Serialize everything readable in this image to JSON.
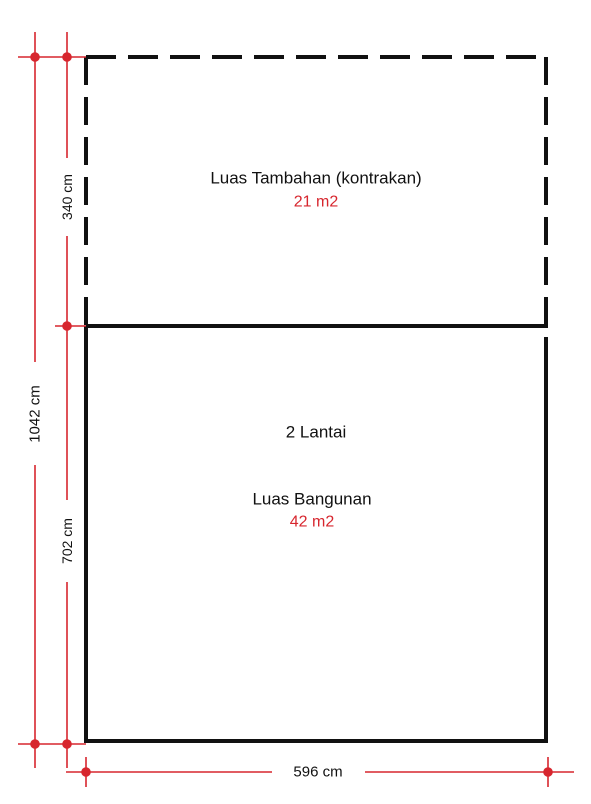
{
  "colors": {
    "outline": "#111111",
    "dimension": "#d7262e",
    "area_value": "#d7262e"
  },
  "top_room": {
    "title": "Luas Tambahan (kontrakan)",
    "area": "21 m2",
    "border_style": "dashed"
  },
  "bottom_room": {
    "floors": "2 Lantai",
    "title": "Luas Bangunan",
    "area": "42 m2",
    "border_style": "solid"
  },
  "dimensions": {
    "total_height": "1042 cm",
    "top_height": "340 cm",
    "bottom_height": "702 cm",
    "width": "596 cm"
  }
}
